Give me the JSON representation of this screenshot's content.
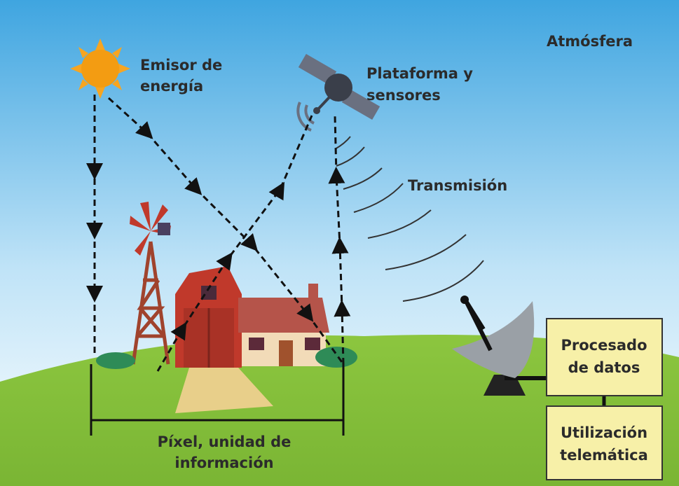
{
  "labels": {
    "atmosphere": "Atmósfera",
    "energy_source": [
      "Emisor de",
      "energía"
    ],
    "platform": [
      "Plataforma y",
      "sensores"
    ],
    "transmission": "Transmisión",
    "processing": [
      "Procesado",
      "de datos"
    ],
    "usage": [
      "Utilización",
      "telemática"
    ],
    "pixel": [
      "Píxel, unidad de",
      "información"
    ]
  }
}
